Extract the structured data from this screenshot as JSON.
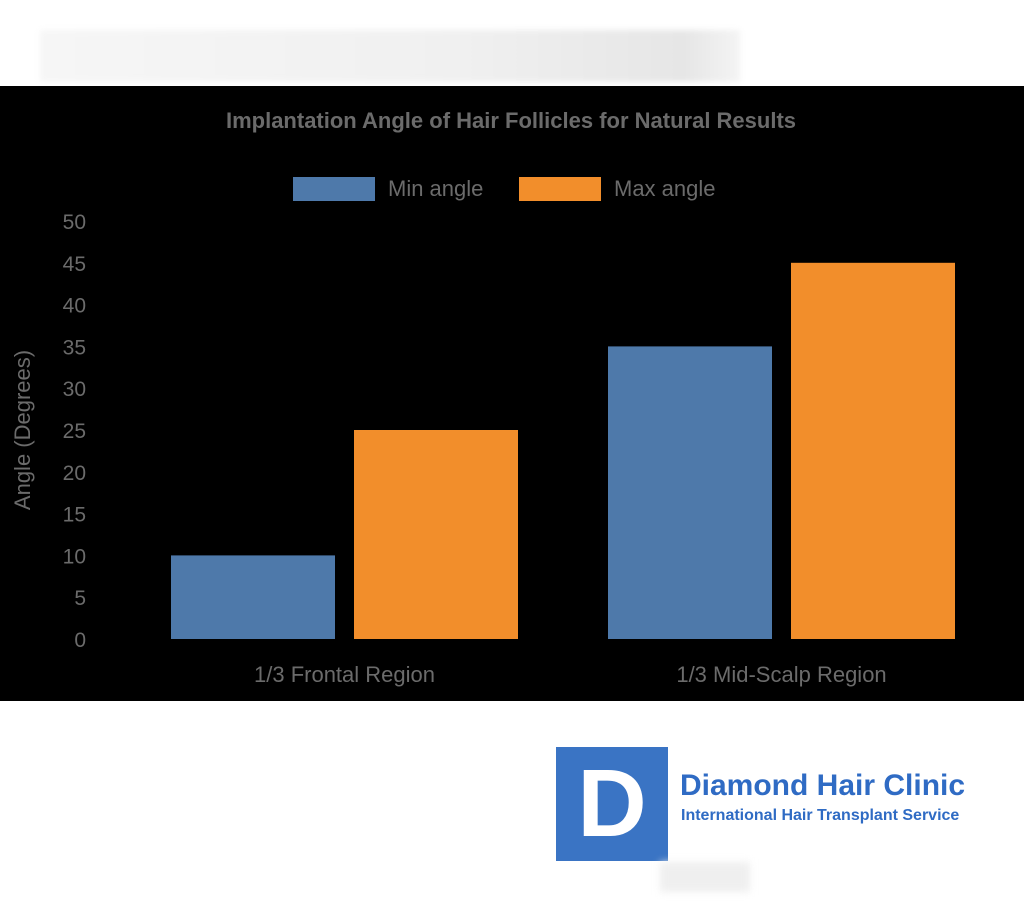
{
  "chart_data": {
    "type": "bar",
    "title": "Implantation Angle of Hair Follicles for Natural Results",
    "xlabel": "",
    "ylabel": "Angle (Degrees)",
    "categories": [
      "1/3 Frontal Region",
      "1/3 Mid-Scalp Region"
    ],
    "series": [
      {
        "name": "Min angle",
        "values": [
          10,
          35
        ],
        "color": "#4e79aa"
      },
      {
        "name": "Max angle",
        "values": [
          25,
          45
        ],
        "color": "#f28e2b"
      }
    ],
    "ylim": [
      0,
      50
    ],
    "yticks": [
      0,
      5,
      10,
      15,
      20,
      25,
      30,
      35,
      40,
      45,
      50
    ],
    "grid": false,
    "legend": "top-center",
    "background": "#000000",
    "text_color": "#6b6b6b"
  },
  "logo": {
    "letter": "D",
    "name": "Diamond Hair Clinic",
    "tagline": "International Hair Transplant Service",
    "color": "#3a74c4"
  }
}
